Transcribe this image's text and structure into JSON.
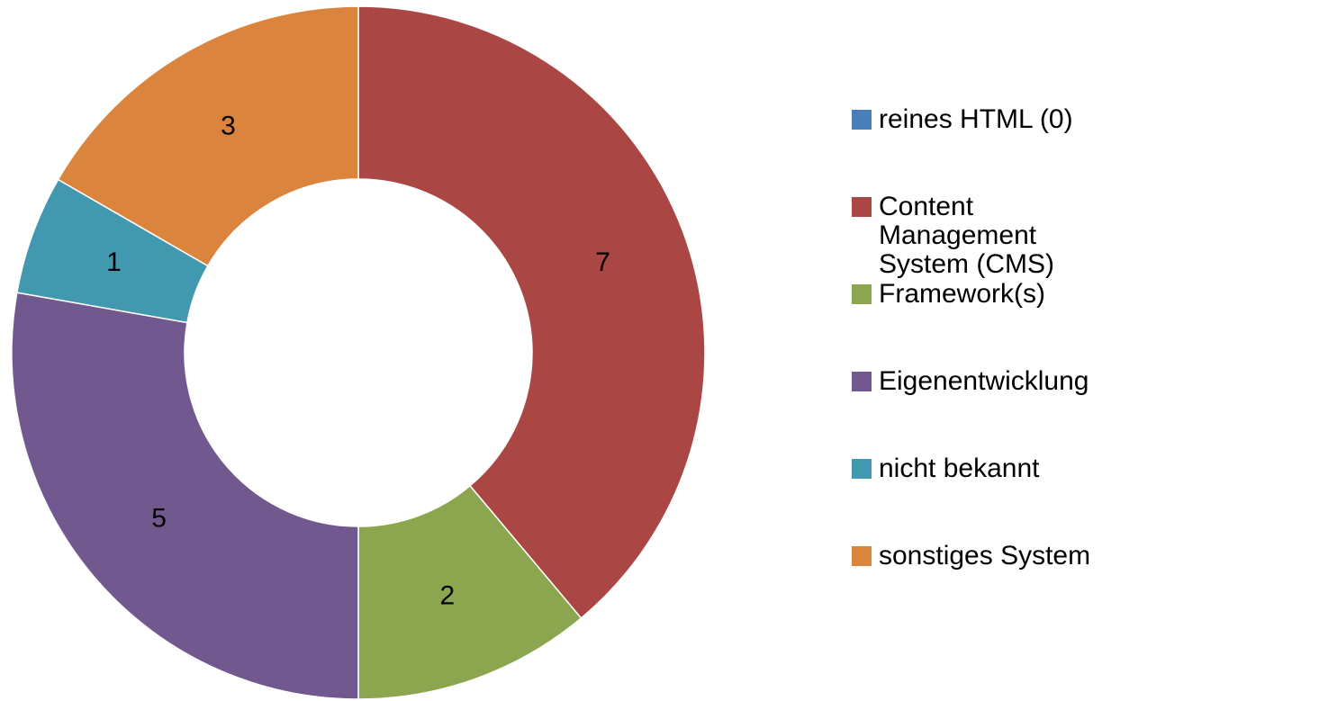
{
  "chart_data": {
    "type": "donut",
    "categories": [
      "reines HTML (0)",
      "Content Management System (CMS)",
      "Framework(s)",
      "Eigenentwicklung",
      "nicht bekannt",
      "sonstiges System"
    ],
    "values": [
      0,
      7,
      2,
      5,
      1,
      3
    ],
    "colors": [
      "#4a7ebb",
      "#aa4644",
      "#8ba64f",
      "#71588f",
      "#4198af",
      "#db843d"
    ],
    "legend": "right"
  }
}
